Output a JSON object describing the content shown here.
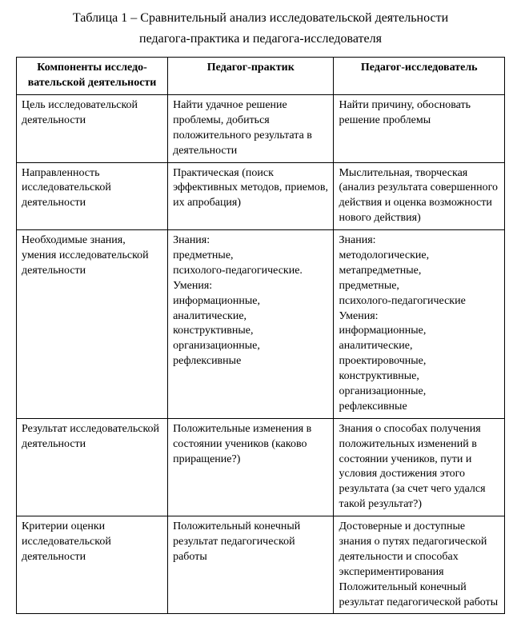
{
  "caption": {
    "line1": "Таблица 1 – Сравнительный анализ исследовательской деятельности",
    "line2": "педагога-практика и педагога-исследователя"
  },
  "table": {
    "columns": [
      "Компоненты исследо-вательской деятельности",
      "Педагог-практик",
      "Педагог-исследователь"
    ],
    "rows": [
      {
        "c1": "Цель исследовательской деятельности",
        "c2": "Найти удачное решение проблемы, добиться положительного результата в деятельности",
        "c3": "Найти причину, обосновать решение проблемы"
      },
      {
        "c1": "Направленность исследовательской деятельности",
        "c2": "Практическая (поиск эффективных методов, приемов, их апробация)",
        "c3": "Мыслительная, творческая (анализ результата совершенного действия и оценка возможности нового действия)"
      },
      {
        "c1": "Необходимые знания, умения исследовательской деятельности",
        "c2": "Знания:\nпредметные,\nпсихолого-педагогические.\nУмения:\nинформационные,\nаналитические,\nконструктивные,\nорганизационные,\nрефлексивные",
        "c3": " Знания:\n методологические,\nметапредметные,\nпредметные,\nпсихолого-педагогические\nУмения:\nинформационные,\nаналитические,\nпроектировочные,\nконструктивные,\nорганизационные,\nрефлексивные"
      },
      {
        "c1": "Результат исследовательской деятельности",
        "c2": "Положительные изменения в состоянии учеников (каково приращение?)",
        "c3": "Знания о способах получения положительных изменений в состоянии учеников, пути и условия достижения этого результата (за счет чего удался такой результат?)"
      },
      {
        "c1": "Критерии оценки исследовательской деятельности",
        "c2": "Положительный конечный результат педагогической работы",
        "c3": "Достоверные и доступные знания о путях педагогической деятельности и способах экспериментирования\nПоложительный конечный результат педагогической работы"
      }
    ]
  }
}
